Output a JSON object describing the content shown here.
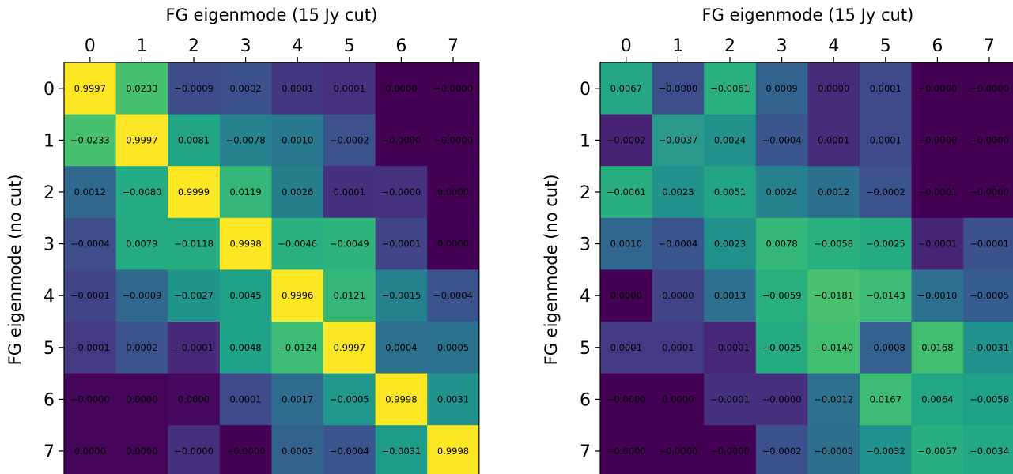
{
  "chart_data": [
    {
      "type": "heatmap",
      "xlabel": "FG eigenmode (15 Jy cut)",
      "ylabel": "FG eigenmode (no cut)",
      "x_ticks": [
        "0",
        "1",
        "2",
        "3",
        "4",
        "5",
        "6",
        "7"
      ],
      "y_ticks": [
        "0",
        "1",
        "2",
        "3",
        "4",
        "5",
        "6",
        "7"
      ],
      "color_range": [
        0,
        1
      ],
      "colormap": "viridis",
      "labels": [
        [
          "0.9997",
          "0.0233",
          "−0.0009",
          "0.0002",
          "0.0001",
          "0.0001",
          "0.0000",
          "−0.0000"
        ],
        [
          "−0.0233",
          "0.9997",
          "0.0081",
          "−0.0078",
          "0.0010",
          "−0.0002",
          "−0.0000",
          "−0.0000"
        ],
        [
          "0.0012",
          "−0.0080",
          "0.9999",
          "0.0119",
          "0.0026",
          "0.0001",
          "−0.0000",
          "0.0000"
        ],
        [
          "−0.0004",
          "0.0079",
          "−0.0118",
          "0.9998",
          "−0.0046",
          "−0.0049",
          "−0.0001",
          "0.0000"
        ],
        [
          "−0.0001",
          "−0.0009",
          "−0.0027",
          "0.0045",
          "0.9996",
          "0.0121",
          "−0.0015",
          "−0.0004"
        ],
        [
          "−0.0001",
          "0.0002",
          "−0.0001",
          "0.0048",
          "−0.0124",
          "0.9997",
          "0.0004",
          "0.0005"
        ],
        [
          "−0.0000",
          "0.0000",
          "0.0000",
          "0.0001",
          "0.0017",
          "−0.0005",
          "0.9998",
          "0.0031"
        ],
        [
          "0.0000",
          "0.0000",
          "−0.0000",
          "−0.0000",
          "0.0003",
          "−0.0004",
          "−0.0031",
          "0.9998"
        ]
      ],
      "colors": [
        [
          "#fde725",
          "#48c16e",
          "#3d4d8a",
          "#3b518b",
          "#453781",
          "#46327e",
          "#440154",
          "#440154"
        ],
        [
          "#48c16e",
          "#fde725",
          "#21a585",
          "#26828e",
          "#2a788e",
          "#3b528b",
          "#440154",
          "#440154"
        ],
        [
          "#31688e",
          "#25ab82",
          "#fde725",
          "#35b779",
          "#277f8e",
          "#46317e",
          "#46327e",
          "#440154"
        ],
        [
          "#3d4e8a",
          "#25ab82",
          "#25ab82",
          "#fde725",
          "#2ab07f",
          "#2eb37c",
          "#414487",
          "#440154"
        ],
        [
          "#414487",
          "#31688e",
          "#1f958b",
          "#1fa188",
          "#fde725",
          "#35b779",
          "#26818e",
          "#3a538b"
        ],
        [
          "#443983",
          "#3b528b",
          "#482979",
          "#1fa287",
          "#3cbc74",
          "#fde725",
          "#2d718e",
          "#2c728e"
        ],
        [
          "#450559",
          "#450457",
          "#46085c",
          "#3e4a89",
          "#2f6c8e",
          "#1f988b",
          "#fde725",
          "#21918c"
        ],
        [
          "#450559",
          "#450457",
          "#46307e",
          "#440154",
          "#33638d",
          "#3a548c",
          "#1e9c89",
          "#fde725"
        ]
      ]
    },
    {
      "type": "heatmap",
      "xlabel": "FG eigenmode (15 Jy cut)",
      "ylabel": "FG eigenmode (no cut)",
      "x_ticks": [
        "0",
        "1",
        "2",
        "3",
        "4",
        "5",
        "6",
        "7"
      ],
      "y_ticks": [
        "0",
        "1",
        "2",
        "3",
        "4",
        "5",
        "6",
        "7"
      ],
      "colormap": "viridis",
      "labels": [
        [
          "0.0067",
          "−0.0000",
          "−0.0061",
          "0.0009",
          "0.0000",
          "0.0001",
          "−0.0000",
          "−0.0000"
        ],
        [
          "−0.0002",
          "−0.0037",
          "0.0024",
          "−0.0004",
          "0.0001",
          "0.0001",
          "−0.0000",
          "−0.0000"
        ],
        [
          "−0.0061",
          "0.0023",
          "0.0051",
          "0.0024",
          "0.0012",
          "−0.0002",
          "−0.0001",
          "−0.0000"
        ],
        [
          "0.0010",
          "−0.0004",
          "0.0023",
          "0.0078",
          "−0.0058",
          "−0.0025",
          "−0.0001",
          "−0.0001"
        ],
        [
          "0.0000",
          "0.0000",
          "0.0013",
          "−0.0059",
          "−0.0181",
          "−0.0143",
          "−0.0010",
          "−0.0005"
        ],
        [
          "0.0001",
          "0.0001",
          "−0.0001",
          "−0.0025",
          "−0.0140",
          "−0.0008",
          "0.0168",
          "−0.0031"
        ],
        [
          "−0.0000",
          "0.0000",
          "−0.0001",
          "−0.0000",
          "−0.0012",
          "0.0167",
          "0.0064",
          "−0.0058"
        ],
        [
          "−0.0000",
          "−0.0000",
          "−0.0000",
          "−0.0002",
          "−0.0005",
          "−0.0032",
          "−0.0057",
          "−0.0034"
        ]
      ],
      "colors": [
        [
          "#26a784",
          "#3c4f8a",
          "#2ab07f",
          "#33638d",
          "#472c7a",
          "#3e4a89",
          "#440154",
          "#440154"
        ],
        [
          "#482374",
          "#2a998b",
          "#21918c",
          "#3a548c",
          "#472c7a",
          "#3e4a89",
          "#440154",
          "#440154"
        ],
        [
          "#29af7f",
          "#21918c",
          "#21a386",
          "#26828e",
          "#2d708e",
          "#3b528b",
          "#440154",
          "#440154"
        ],
        [
          "#31668e",
          "#3a548c",
          "#21918c",
          "#35b779",
          "#2ab07f",
          "#25ab82",
          "#482475",
          "#3b518b"
        ],
        [
          "#440154",
          "#414487",
          "#2d718e",
          "#2ab07f",
          "#4ac16d",
          "#3cbc74",
          "#2d718e",
          "#365c8d"
        ],
        [
          "#443983",
          "#443983",
          "#482979",
          "#25ab82",
          "#42be71",
          "#34618d",
          "#42be71",
          "#21918c"
        ],
        [
          "#440154",
          "#440154",
          "#46317e",
          "#46307e",
          "#2d718e",
          "#3cbc74",
          "#22a785",
          "#1fa088"
        ],
        [
          "#440154",
          "#440154",
          "#440154",
          "#3b518b",
          "#2e6f8e",
          "#21918c",
          "#29af7f",
          "#22a884"
        ]
      ]
    }
  ]
}
